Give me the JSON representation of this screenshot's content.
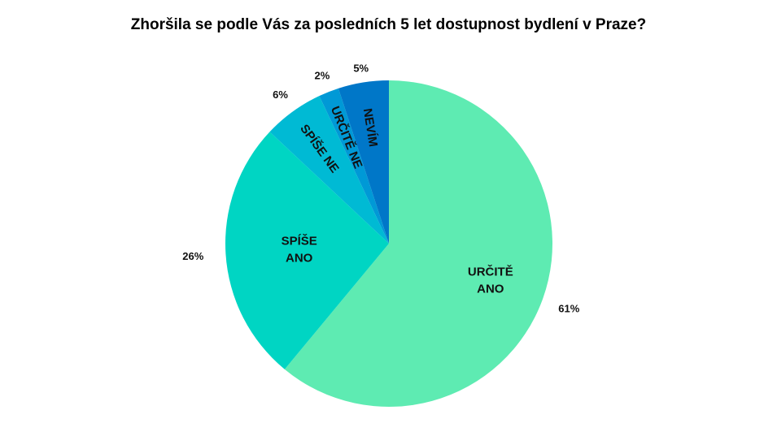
{
  "chart_data": {
    "type": "pie",
    "title": "Zhoršila se podle Vás za posledních 5 let dostupnost bydlení v Praze?",
    "slices": [
      {
        "name": "URČITĚ ANO",
        "lines": [
          "URČITĚ",
          "ANO"
        ],
        "value": 61,
        "label": "61%",
        "color": "#5EEBB2",
        "rotate": false
      },
      {
        "name": "SPÍŠE ANO",
        "lines": [
          "SPÍŠE",
          "ANO"
        ],
        "value": 26,
        "label": "26%",
        "color": "#00D5C3",
        "rotate": false
      },
      {
        "name": "SPÍŠE NE",
        "lines": [
          "SPÍŠE NE"
        ],
        "value": 6,
        "label": "6%",
        "color": "#00BAD4",
        "rotate": true
      },
      {
        "name": "URČITĚ NE",
        "lines": [
          "URČITĚ NE"
        ],
        "value": 2,
        "label": "2%",
        "color": "#0099D6",
        "rotate": true
      },
      {
        "name": "NEVÍM",
        "lines": [
          "NEVÍM"
        ],
        "value": 5,
        "label": "5%",
        "color": "#0077C8",
        "rotate": true
      }
    ],
    "legend": "none"
  }
}
